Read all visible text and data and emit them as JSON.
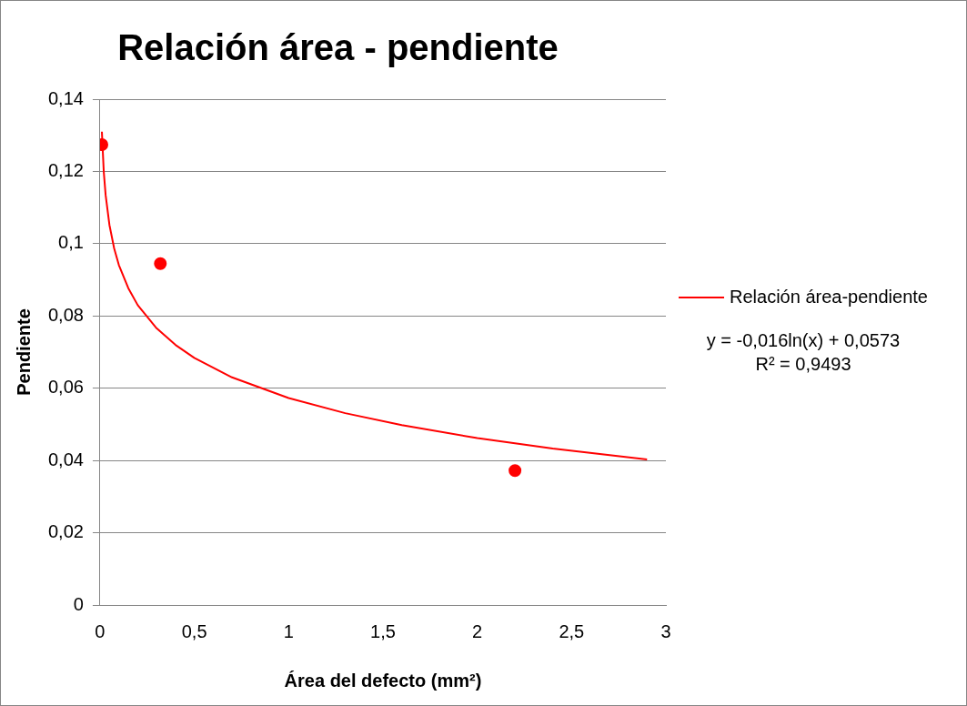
{
  "chart_data": {
    "type": "scatter",
    "title": "Relación área - pendiente",
    "xlabel": "Área del defecto (mm²)",
    "ylabel": "Pendiente",
    "xlim": [
      0,
      3
    ],
    "xticks": [
      {
        "value": 0,
        "label": "0"
      },
      {
        "value": 0.5,
        "label": "0,5"
      },
      {
        "value": 1,
        "label": "1"
      },
      {
        "value": 1.5,
        "label": "1,5"
      },
      {
        "value": 2,
        "label": "2"
      },
      {
        "value": 2.5,
        "label": "2,5"
      },
      {
        "value": 3,
        "label": "3"
      }
    ],
    "ylim": [
      0,
      0.14
    ],
    "yticks": [
      {
        "value": 0,
        "label": "0"
      },
      {
        "value": 0.02,
        "label": "0,02"
      },
      {
        "value": 0.04,
        "label": "0,04"
      },
      {
        "value": 0.06,
        "label": "0,06"
      },
      {
        "value": 0.08,
        "label": "0,08"
      },
      {
        "value": 0.1,
        "label": "0,1"
      },
      {
        "value": 0.12,
        "label": "0,12"
      },
      {
        "value": 0.14,
        "label": "0,14"
      }
    ],
    "grid": "y",
    "legend": "right",
    "marker": "circle",
    "series": [
      {
        "color": "#ff0000",
        "x": [
          0.01,
          0.32,
          2.2
        ],
        "values": [
          0.1274,
          0.0945,
          0.0372
        ]
      },
      {
        "type": "line",
        "name": "Relación área-pendiente",
        "color": "#ff0000",
        "marker": "none",
        "x": [
          0.01,
          0.02,
          0.03,
          0.05,
          0.075,
          0.1,
          0.15,
          0.2,
          0.3,
          0.4,
          0.5,
          0.7,
          1,
          1.3,
          1.6,
          2,
          2.4,
          2.9
        ],
        "values": [
          0.131,
          0.1199,
          0.1134,
          0.1052,
          0.0987,
          0.0941,
          0.0877,
          0.083,
          0.0766,
          0.072,
          0.0684,
          0.063,
          0.0573,
          0.0531,
          0.0498,
          0.0462,
          0.0433,
          0.0403
        ]
      }
    ],
    "annotations": [
      "y = -0,016ln(x) + 0,0573",
      "R² = 0,9493"
    ]
  }
}
